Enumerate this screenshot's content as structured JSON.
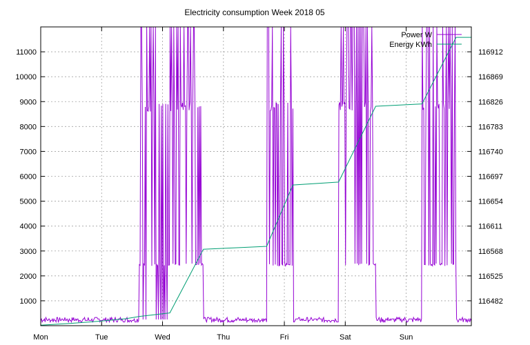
{
  "chart_data": {
    "type": "line",
    "title": "Electricity consumption Week 2018 05",
    "xlabel": "",
    "ylabel": "",
    "x_ticks": [
      "Mon",
      "Tue",
      "Wed",
      "Thu",
      "Fri",
      "Sat",
      "Sun"
    ],
    "xlim": [
      0,
      7.07
    ],
    "ylim": [
      0,
      12000
    ],
    "y_ticks": [
      1000,
      2000,
      3000,
      4000,
      5000,
      6000,
      7000,
      8000,
      9000,
      10000,
      11000
    ],
    "y2lim": [
      116439,
      116955
    ],
    "y2_ticks": [
      116482,
      116525,
      116568,
      116611,
      116654,
      116697,
      116740,
      116783,
      116826,
      116869,
      116912
    ],
    "grid": true,
    "legend_position": "top-right",
    "series": [
      {
        "name": "Power W",
        "axis": "left",
        "color": "#9400d3",
        "active_periods": [
          {
            "start": 1.62,
            "end": 2.12
          },
          {
            "start": 2.12,
            "end": 2.67
          },
          {
            "start": 3.71,
            "end": 4.14
          },
          {
            "start": 4.89,
            "end": 5.5
          },
          {
            "start": 6.26,
            "end": 6.82
          }
        ],
        "baseline_range": [
          150,
          450
        ],
        "active_levels": [
          2500,
          9000,
          12000
        ]
      },
      {
        "name": "Energy KWh",
        "axis": "right",
        "color": "#009e73",
        "x": [
          0,
          0.5,
          1.0,
          1.4,
          1.62,
          2.12,
          2.67,
          3.71,
          4.14,
          4.89,
          5.5,
          6.26,
          6.82,
          7.07
        ],
        "y": [
          116440,
          116443,
          116447,
          116451,
          116455,
          116461,
          116571,
          116576,
          116682,
          116687,
          116818,
          116822,
          116937,
          116937
        ]
      }
    ]
  }
}
